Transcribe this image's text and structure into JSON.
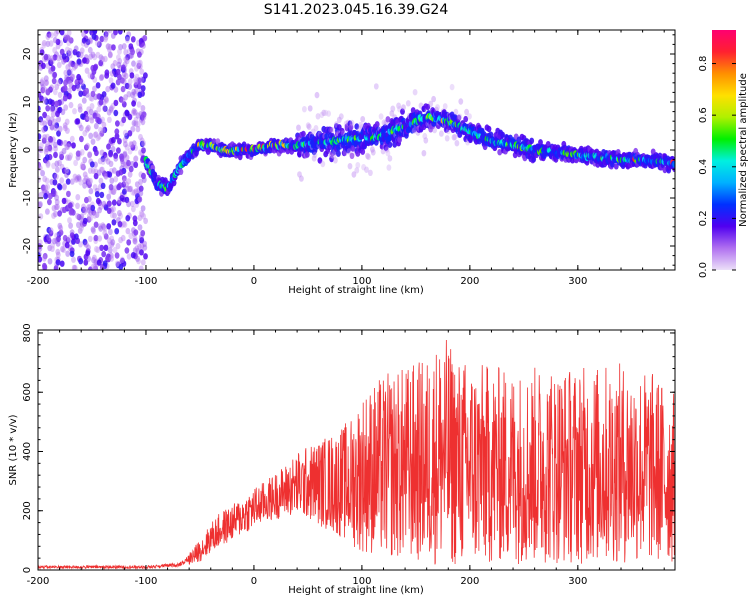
{
  "title": "S141.2023.045.16.39.G24",
  "chart_data": [
    {
      "type": "heatmap",
      "xlabel": "Height of straight line (km)",
      "ylabel": "Frequency (Hz)",
      "xlim": [
        -200,
        390
      ],
      "ylim": [
        -25,
        25
      ],
      "x_ticks": [
        "-200",
        "-100",
        "0",
        "100",
        "200",
        "300"
      ],
      "y_ticks": [
        "-20",
        "-10",
        "0",
        "10",
        "20"
      ],
      "colorbar": {
        "label": "Normalized spectral amplitude",
        "range": [
          0,
          0.93
        ],
        "ticks": [
          "0.0",
          "0.2",
          "0.4",
          "0.6",
          "0.8"
        ],
        "colors": [
          "#ece0f8",
          "#b070f0",
          "#5000f0",
          "#0030ff",
          "#00b0ff",
          "#00f0e0",
          "#00f000",
          "#b0f000",
          "#ffe000",
          "#ff9000",
          "#ff2030",
          "#ff0070"
        ]
      },
      "ridge": {
        "x": [
          -100,
          -90,
          -80,
          -70,
          -60,
          -50,
          -40,
          -30,
          -20,
          -10,
          0,
          20,
          40,
          60,
          80,
          100,
          120,
          140,
          160,
          180,
          200,
          220,
          240,
          260,
          280,
          300,
          320,
          340,
          360,
          380,
          390
        ],
        "y": [
          -2,
          -7,
          -8,
          -4,
          -1,
          1,
          1,
          0,
          0,
          0,
          0,
          1,
          1,
          1.5,
          2,
          2.5,
          3,
          5,
          7,
          6,
          4,
          2,
          1,
          0,
          -0.5,
          -1,
          -1.5,
          -2,
          -2,
          -2.5,
          -3
        ]
      },
      "grid": false
    },
    {
      "type": "line",
      "xlabel": "Height of straight line (km)",
      "ylabel": "SNR (10 * v/v)",
      "xlim": [
        -200,
        390
      ],
      "ylim": [
        0,
        810
      ],
      "x_ticks": [
        "-200",
        "-100",
        "0",
        "100",
        "200",
        "300"
      ],
      "y_ticks": [
        "0",
        "200",
        "400",
        "600",
        "800"
      ],
      "series": [
        {
          "color": "#ee3030",
          "envelope": {
            "x": [
              -200,
              -100,
              -70,
              -55,
              -45,
              -40,
              -30,
              -20,
              -10,
              0,
              10,
              20,
              30,
              40,
              50,
              60,
              70,
              80,
              90,
              100,
              120,
              140,
              160,
              175,
              190,
              210,
              230,
              250,
              270,
              290,
              310,
              330,
              350,
              370,
              390
            ],
            "low": [
              0,
              0,
              5,
              20,
              40,
              60,
              80,
              100,
              120,
              140,
              160,
              170,
              180,
              180,
              170,
              150,
              130,
              110,
              80,
              60,
              40,
              30,
              20,
              10,
              10,
              10,
              20,
              20,
              20,
              20,
              20,
              20,
              20,
              20,
              20
            ],
            "high": [
              20,
              20,
              30,
              80,
              130,
              160,
              200,
              220,
              250,
              280,
              300,
              330,
              360,
              400,
              420,
              440,
              460,
              480,
              520,
              600,
              660,
              690,
              720,
              800,
              720,
              700,
              690,
              680,
              700,
              690,
              690,
              700,
              700,
              670,
              600
            ]
          }
        }
      ],
      "grid": false
    }
  ]
}
